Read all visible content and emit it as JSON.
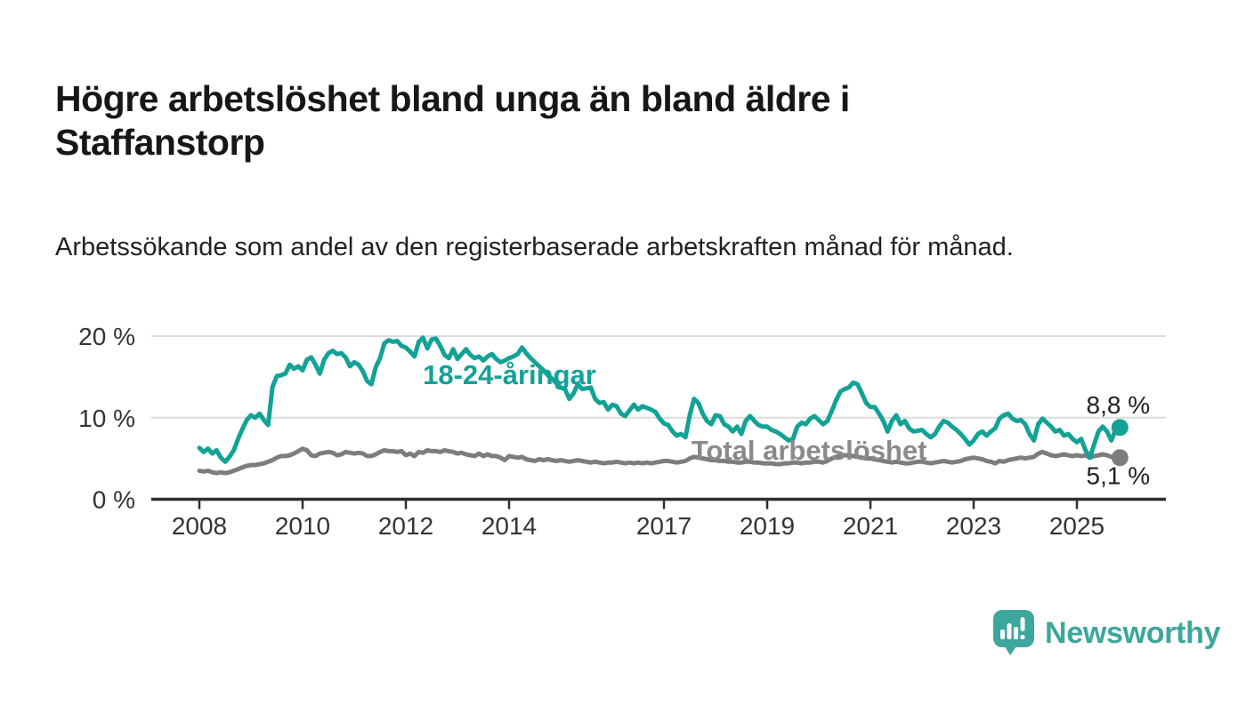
{
  "header": {
    "title": "Högre arbetslöshet bland unga än bland äldre i Staffanstorp",
    "subtitle": "Arbetssökande som andel av den registerbaserade arbetskraften månad för månad."
  },
  "chart_data": {
    "type": "line",
    "unit": "%",
    "grid": "horizontal-only",
    "y_axis": {
      "range": [
        0,
        20
      ],
      "ticks": [
        {
          "label": "0 %",
          "value": 0
        },
        {
          "label": "10 %",
          "value": 10
        },
        {
          "label": "20 %",
          "value": 20
        }
      ]
    },
    "x_axis": {
      "range_years": [
        2008,
        2025.83
      ],
      "ticks": [
        "2008",
        "2010",
        "2012",
        "2014",
        "2017",
        "2019",
        "2021",
        "2023",
        "2025"
      ]
    },
    "series": [
      {
        "id": "total",
        "name": "Total arbetslöshet",
        "color": "#7d7d7d",
        "label_color": "#8a8a8a",
        "start_year": 2008,
        "step_months": 1,
        "end_label": "5,1 %",
        "end_label_position": "below",
        "label_at": {
          "year": 2017.53,
          "value": 4.85
        },
        "values": [
          3.5,
          3.4,
          3.5,
          3.3,
          3.2,
          3.3,
          3.2,
          3.3,
          3.5,
          3.7,
          3.9,
          4.1,
          4.2,
          4.2,
          4.3,
          4.4,
          4.6,
          4.8,
          5.1,
          5.3,
          5.3,
          5.4,
          5.6,
          5.9,
          6.2,
          6.0,
          5.4,
          5.3,
          5.6,
          5.7,
          5.8,
          5.7,
          5.4,
          5.5,
          5.8,
          5.7,
          5.6,
          5.7,
          5.6,
          5.3,
          5.3,
          5.5,
          5.8,
          6.0,
          5.9,
          5.9,
          5.8,
          5.9,
          5.4,
          5.6,
          5.3,
          5.8,
          5.7,
          6.0,
          5.9,
          5.9,
          5.8,
          6.0,
          5.9,
          5.8,
          5.6,
          5.7,
          5.5,
          5.4,
          5.3,
          5.6,
          5.3,
          5.5,
          5.3,
          5.3,
          5.1,
          4.8,
          5.3,
          5.2,
          5.1,
          5.2,
          4.9,
          4.8,
          4.7,
          4.9,
          4.8,
          4.9,
          4.8,
          4.7,
          4.8,
          4.7,
          4.6,
          4.7,
          4.8,
          4.7,
          4.6,
          4.5,
          4.6,
          4.5,
          4.4,
          4.5,
          4.5,
          4.6,
          4.5,
          4.4,
          4.5,
          4.4,
          4.5,
          4.4,
          4.5,
          4.4,
          4.5,
          4.6,
          4.7,
          4.7,
          4.6,
          4.5,
          4.6,
          4.7,
          5.0,
          5.2,
          5.1,
          5.0,
          4.9,
          4.8,
          4.8,
          4.7,
          4.7,
          4.6,
          4.6,
          4.5,
          4.5,
          4.6,
          4.6,
          4.5,
          4.5,
          4.4,
          4.4,
          4.4,
          4.3,
          4.3,
          4.4,
          4.4,
          4.5,
          4.5,
          4.4,
          4.5,
          4.5,
          4.6,
          4.6,
          4.5,
          4.7,
          5.0,
          5.2,
          5.3,
          5.4,
          5.4,
          5.3,
          5.2,
          5.1,
          5.0,
          5.0,
          4.9,
          4.8,
          4.7,
          4.6,
          4.5,
          4.6,
          4.5,
          4.4,
          4.4,
          4.5,
          4.6,
          4.6,
          4.5,
          4.4,
          4.5,
          4.6,
          4.7,
          4.6,
          4.5,
          4.6,
          4.7,
          4.9,
          5.0,
          5.1,
          5.0,
          4.9,
          4.7,
          4.6,
          4.4,
          4.7,
          4.6,
          4.8,
          4.9,
          5.0,
          5.1,
          5.0,
          5.1,
          5.2,
          5.6,
          5.8,
          5.6,
          5.4,
          5.3,
          5.4,
          5.5,
          5.4,
          5.3,
          5.4,
          5.3,
          5.4,
          5.1,
          5.3,
          5.4,
          5.5,
          5.4,
          5.2,
          5.2,
          5.1
        ]
      },
      {
        "id": "youth",
        "name": "18-24-åringar",
        "color": "#12a296",
        "label_color": "#12a296",
        "start_year": 2008,
        "step_months": 1,
        "end_label": "8,8 %",
        "end_label_position": "above",
        "label_at": {
          "year": 2012.33,
          "value": 14.1
        },
        "values": [
          6.3,
          5.8,
          6.2,
          5.6,
          6.0,
          5.1,
          4.6,
          5.2,
          6.0,
          7.4,
          8.6,
          9.7,
          10.3,
          10.0,
          10.5,
          9.7,
          9.1,
          13.8,
          15.1,
          15.2,
          15.4,
          16.5,
          16.0,
          16.3,
          15.8,
          17.1,
          17.4,
          16.5,
          15.4,
          17.1,
          17.9,
          18.2,
          17.8,
          17.9,
          17.4,
          16.3,
          16.8,
          16.5,
          15.7,
          14.5,
          14.1,
          16.2,
          17.3,
          19.1,
          19.5,
          19.3,
          19.4,
          18.8,
          18.6,
          18.1,
          17.5,
          19.3,
          19.8,
          18.5,
          19.6,
          19.7,
          18.8,
          17.7,
          17.3,
          18.4,
          17.2,
          17.8,
          18.4,
          17.7,
          17.3,
          17.5,
          17.0,
          17.5,
          17.8,
          17.2,
          16.8,
          17.0,
          17.3,
          17.5,
          17.8,
          18.6,
          17.9,
          17.3,
          16.8,
          16.3,
          15.8,
          15.2,
          14.8,
          14.2,
          13.7,
          13.5,
          12.3,
          13.0,
          14.1,
          13.5,
          13.6,
          13.7,
          12.3,
          11.8,
          11.9,
          11.0,
          11.6,
          11.4,
          10.5,
          10.2,
          10.9,
          11.6,
          11.0,
          11.4,
          11.2,
          11.0,
          10.7,
          9.9,
          9.3,
          9.1,
          8.3,
          7.8,
          8.0,
          7.6,
          10.3,
          12.3,
          11.8,
          10.5,
          9.6,
          9.2,
          10.3,
          10.2,
          9.2,
          8.9,
          8.3,
          8.9,
          8.0,
          9.6,
          10.2,
          9.6,
          9.1,
          8.9,
          8.9,
          8.5,
          8.3,
          8.0,
          7.6,
          7.2,
          7.4,
          8.9,
          9.4,
          9.2,
          9.9,
          10.2,
          9.7,
          9.2,
          9.6,
          10.8,
          12.1,
          13.2,
          13.5,
          13.7,
          14.3,
          14.1,
          13.0,
          11.8,
          11.3,
          11.3,
          10.5,
          9.6,
          8.3,
          9.6,
          10.3,
          9.2,
          9.6,
          8.7,
          8.3,
          8.4,
          8.5,
          8.0,
          7.6,
          8.0,
          8.9,
          9.6,
          9.4,
          8.9,
          8.5,
          8.0,
          7.4,
          6.7,
          7.2,
          8.0,
          8.3,
          7.8,
          8.3,
          8.7,
          9.9,
          10.3,
          10.5,
          9.9,
          9.6,
          9.7,
          9.2,
          8.0,
          7.2,
          9.2,
          9.9,
          9.4,
          8.9,
          8.3,
          8.5,
          7.8,
          8.0,
          7.4,
          7.0,
          7.4,
          6.0,
          5.1,
          6.7,
          8.3,
          8.9,
          8.3,
          7.2,
          8.5,
          8.8
        ]
      }
    ],
    "colors": {
      "grid": "#dcdcdc",
      "axis": "#2f2f2f",
      "tick_text": "#333333",
      "value_label_text": "#222222"
    }
  },
  "branding": {
    "logo_text": "Newsworthy",
    "logo_color": "#3ba79d"
  }
}
